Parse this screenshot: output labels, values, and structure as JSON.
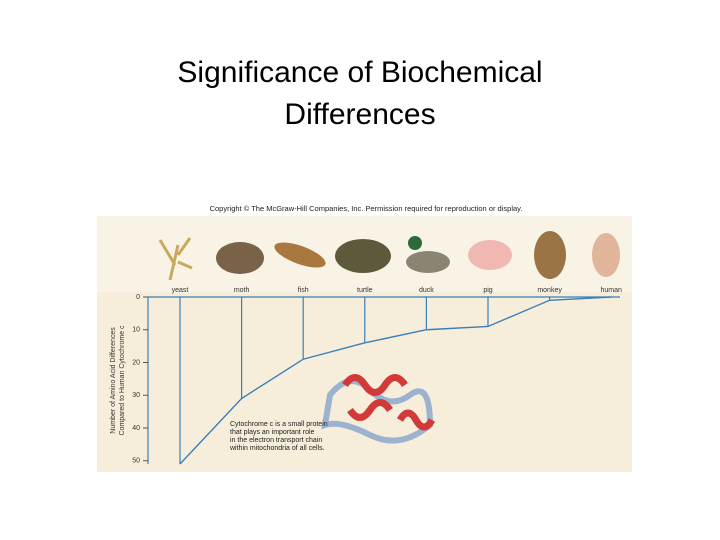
{
  "slide": {
    "title": "Significance of Biochemical Differences"
  },
  "chart_data": {
    "type": "line",
    "copyright": "Copyright © The McGraw-Hill Companies, Inc. Permission required for reproduction or display.",
    "ylabel": [
      "Number of Amino Acid Differences",
      "Compared to Human Cytochrome c"
    ],
    "categories": [
      "yeast",
      "moth",
      "fish",
      "turtle",
      "duck",
      "pig",
      "monkey",
      "human"
    ],
    "values": [
      51,
      31,
      19,
      14,
      10,
      9,
      1,
      0
    ],
    "color": "#3b7fb8",
    "ylim": [
      0,
      51
    ],
    "yticks": [
      0,
      10,
      20,
      30,
      40,
      50
    ],
    "y_inverted": true,
    "annotation": [
      "Cytochrome c is a small protein",
      "that plays an important role",
      "in the electron transport chain",
      "within mitochondria of all cells."
    ]
  }
}
